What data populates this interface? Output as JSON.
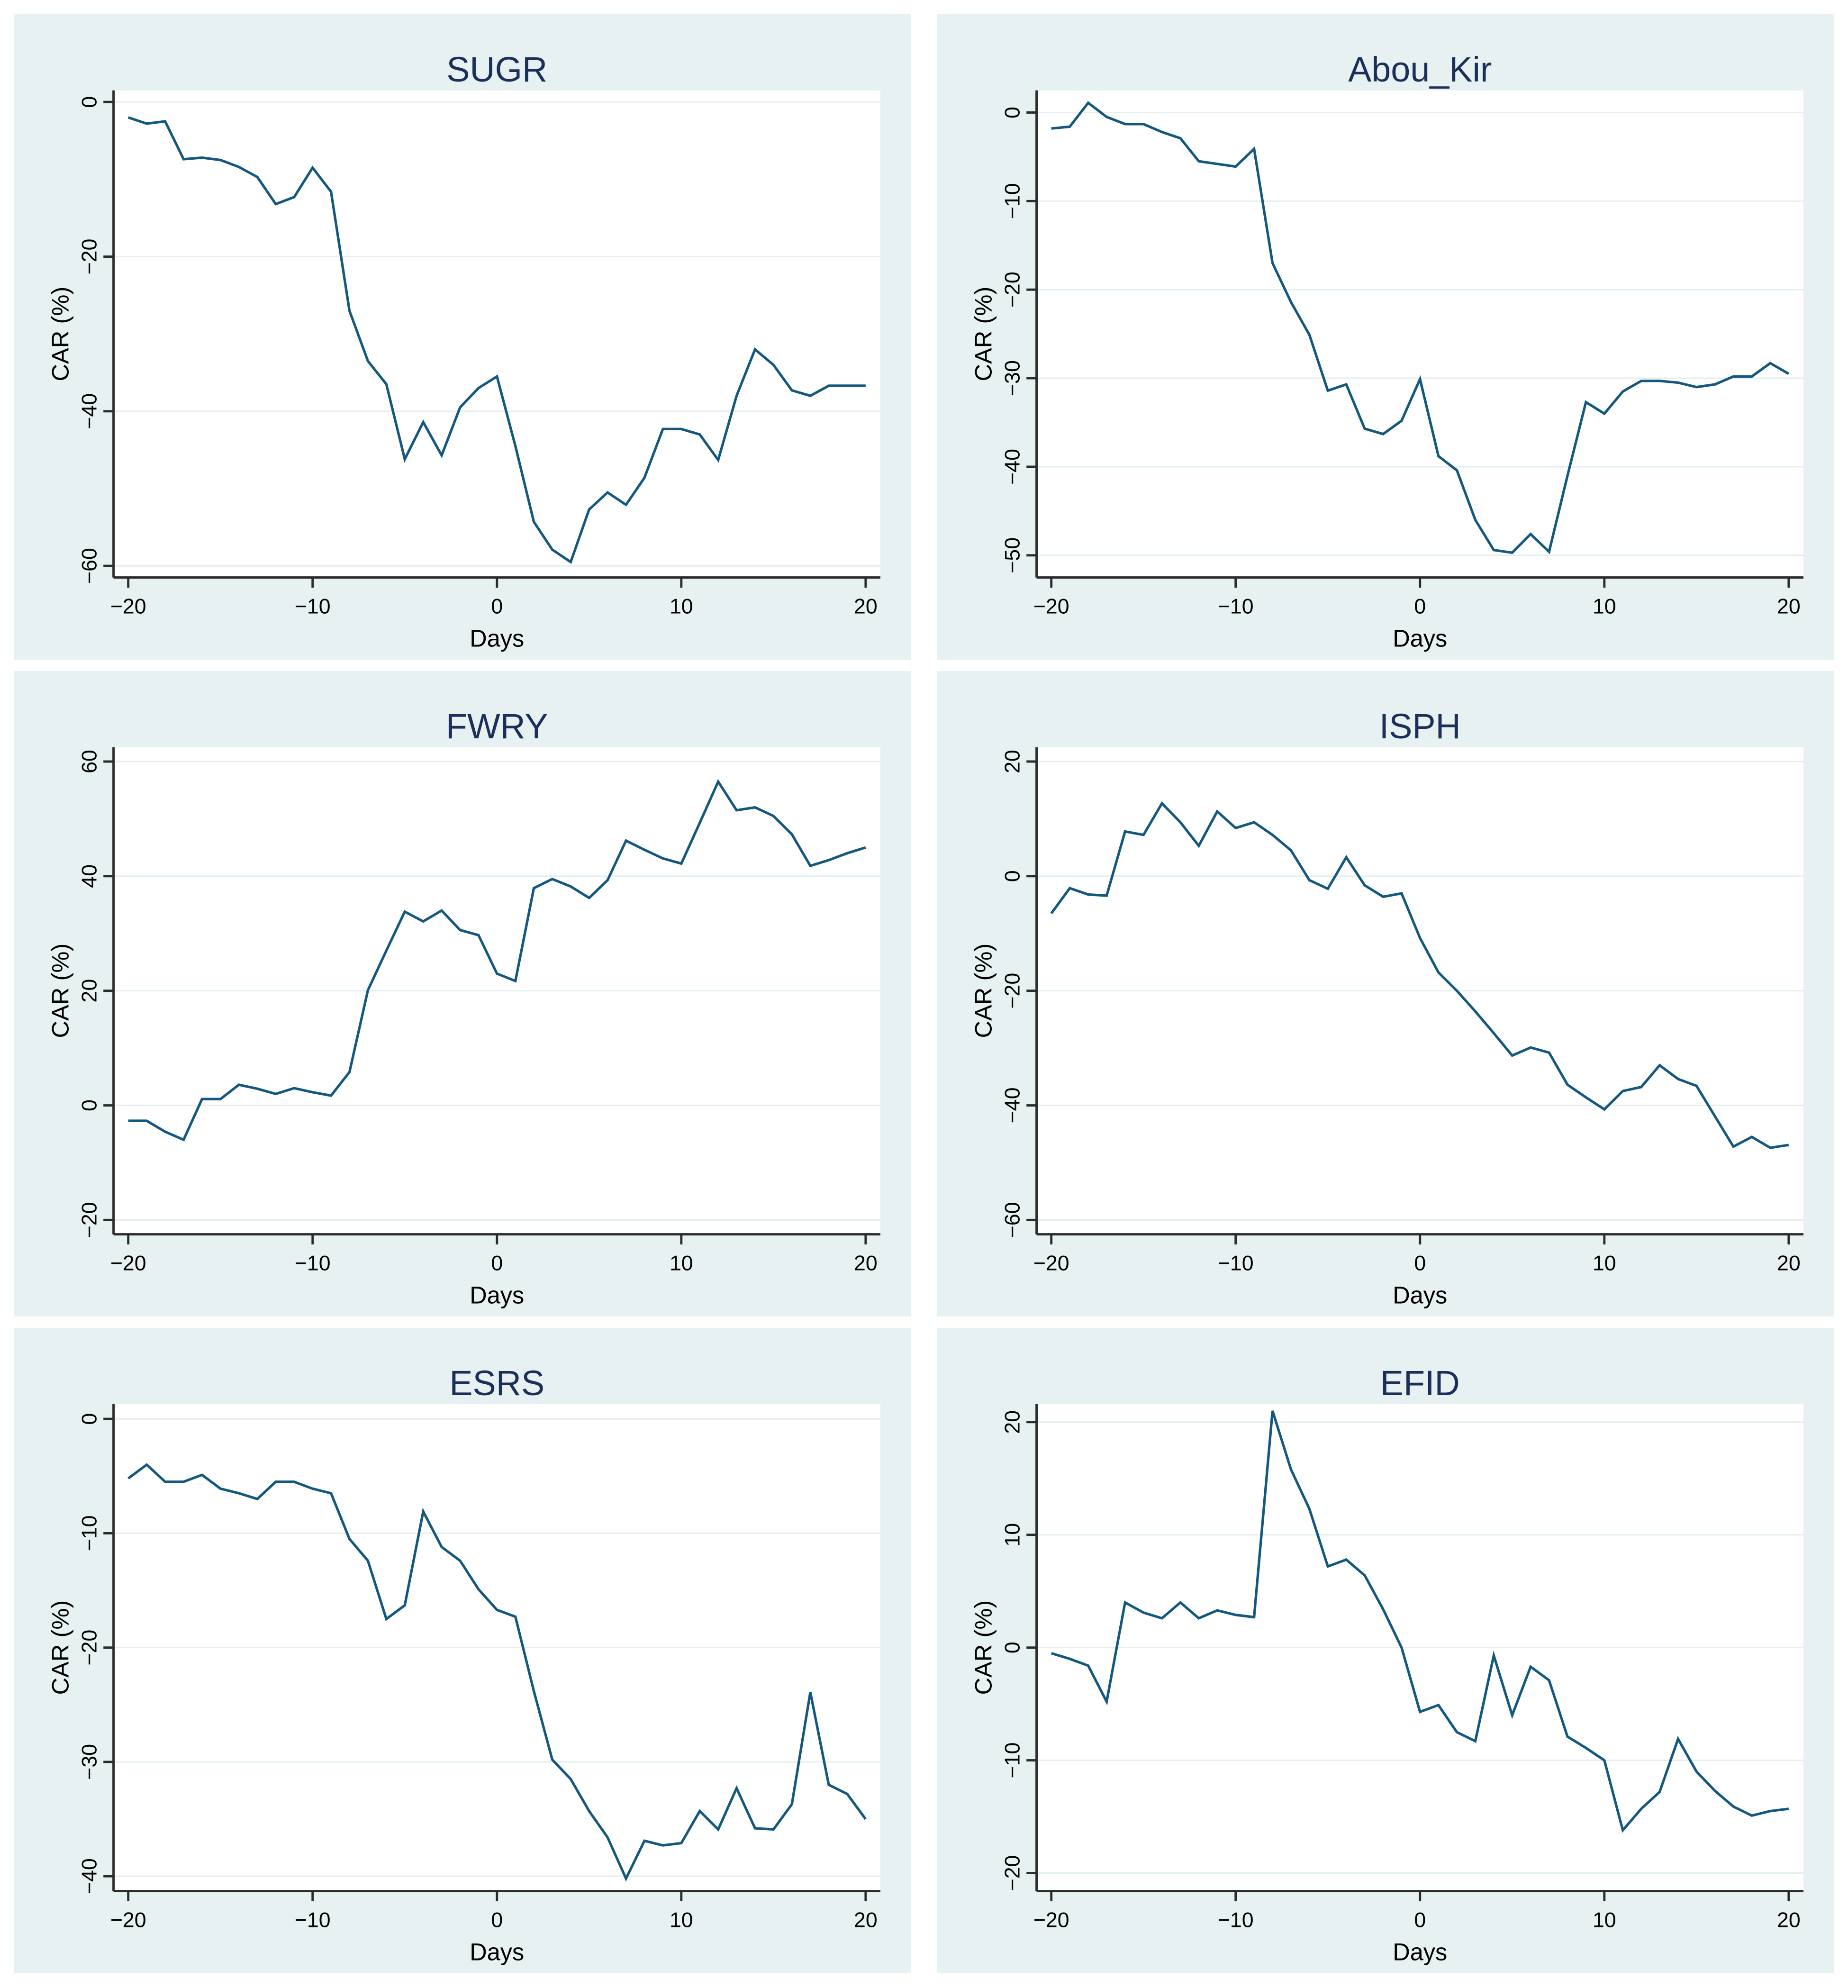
{
  "style": {
    "page_bg": "#ffffff",
    "panel_bg": "#e8f1f2",
    "plot_bg": "#ffffff",
    "grid_color": "#e2eef0",
    "axis_color": "#2b2b2b",
    "tick_text_color": "#000000",
    "title_color": "#1b2f5b",
    "line_color": "#14587f"
  },
  "chart_data": [
    {
      "type": "line",
      "title": "SUGR",
      "xlabel": "Days",
      "ylabel": "CAR (%)",
      "x": [
        -20,
        -19,
        -18,
        -17,
        -16,
        -15,
        -14,
        -13,
        -12,
        -11,
        -10,
        -9,
        -8,
        -7,
        -6,
        -5,
        -4,
        -3,
        -2,
        -1,
        0,
        1,
        2,
        3,
        4,
        5,
        6,
        7,
        8,
        9,
        10,
        11,
        12,
        13,
        14,
        15,
        16,
        17,
        18,
        19,
        20
      ],
      "values": [
        -2.0,
        -2.8,
        -2.5,
        -7.4,
        -7.2,
        -7.5,
        -8.4,
        -9.7,
        -13.2,
        -12.3,
        -8.5,
        -11.6,
        -27.0,
        -33.5,
        -36.5,
        -46.2,
        -41.4,
        -45.7,
        -39.5,
        -37.0,
        -35.5,
        -44.5,
        -54.3,
        -57.9,
        -59.5,
        -52.7,
        -50.5,
        -52.1,
        -48.6,
        -42.3,
        -42.3,
        -43.0,
        -46.3,
        -38.0,
        -32.0,
        -34.0,
        -37.3,
        -38.0,
        -36.7,
        -36.7,
        -36.7
      ],
      "xticks": [
        -20,
        -10,
        0,
        10,
        20
      ],
      "yticks": [
        0,
        -20,
        -40,
        -60
      ],
      "xlim": [
        -20.8,
        20.8
      ],
      "ylim": [
        -61.5,
        1.5
      ],
      "grid": "horizontal",
      "legend": "none"
    },
    {
      "type": "line",
      "title": "Abou_Kir",
      "xlabel": "Days",
      "ylabel": "CAR (%)",
      "x": [
        -20,
        -19,
        -18,
        -17,
        -16,
        -15,
        -14,
        -13,
        -12,
        -11,
        -10,
        -9,
        -8,
        -7,
        -6,
        -5,
        -4,
        -3,
        -2,
        -1,
        0,
        1,
        2,
        3,
        4,
        5,
        6,
        7,
        8,
        9,
        10,
        11,
        12,
        13,
        14,
        15,
        16,
        17,
        18,
        19,
        20
      ],
      "values": [
        -1.8,
        -1.6,
        1.1,
        -0.5,
        -1.3,
        -1.3,
        -2.2,
        -2.9,
        -5.5,
        -5.8,
        -6.1,
        -4.1,
        -17.0,
        -21.4,
        -25.1,
        -31.4,
        -30.7,
        -35.7,
        -36.3,
        -34.8,
        -30.1,
        -38.8,
        -40.4,
        -46.0,
        -49.4,
        -49.7,
        -47.6,
        -49.6,
        -41.0,
        -32.7,
        -34.0,
        -31.5,
        -30.3,
        -30.3,
        -30.5,
        -31.0,
        -30.7,
        -29.8,
        -29.8,
        -28.3,
        -29.5
      ],
      "xticks": [
        -20,
        -10,
        0,
        10,
        20
      ],
      "yticks": [
        0,
        -10,
        -20,
        -30,
        -40,
        -50
      ],
      "xlim": [
        -20.8,
        20.8
      ],
      "ylim": [
        -52.5,
        2.5
      ],
      "grid": "horizontal",
      "legend": "none"
    },
    {
      "type": "line",
      "title": "FWRY",
      "xlabel": "Days",
      "ylabel": "CAR (%)",
      "x": [
        -20,
        -19,
        -18,
        -17,
        -16,
        -15,
        -14,
        -13,
        -12,
        -11,
        -10,
        -9,
        -8,
        -7,
        -6,
        -5,
        -4,
        -3,
        -2,
        -1,
        0,
        1,
        2,
        3,
        4,
        5,
        6,
        7,
        8,
        9,
        10,
        11,
        12,
        13,
        14,
        15,
        16,
        17,
        18,
        19,
        20
      ],
      "values": [
        -2.7,
        -2.7,
        -4.6,
        -6.0,
        1.1,
        1.1,
        3.6,
        2.9,
        2.0,
        3.0,
        2.3,
        1.7,
        5.8,
        20.1,
        27.0,
        33.8,
        32.1,
        34.0,
        30.6,
        29.7,
        23.0,
        21.7,
        37.9,
        39.5,
        38.2,
        36.2,
        39.3,
        46.2,
        44.6,
        43.1,
        42.2,
        49.3,
        56.5,
        51.5,
        52.0,
        50.5,
        47.3,
        41.8,
        42.8,
        44.0,
        45.0
      ],
      "xticks": [
        -20,
        -10,
        0,
        10,
        20
      ],
      "yticks": [
        60,
        40,
        20,
        0,
        -20
      ],
      "xlim": [
        -20.8,
        20.8
      ],
      "ylim": [
        -22.5,
        62.5
      ],
      "grid": "horizontal",
      "legend": "none"
    },
    {
      "type": "line",
      "title": "ISPH",
      "xlabel": "Days",
      "ylabel": "CAR (%)",
      "x": [
        -20,
        -19,
        -18,
        -17,
        -16,
        -15,
        -14,
        -13,
        -12,
        -11,
        -10,
        -9,
        -8,
        -7,
        -6,
        -5,
        -4,
        -3,
        -2,
        -1,
        0,
        1,
        2,
        3,
        4,
        5,
        6,
        7,
        8,
        9,
        10,
        11,
        12,
        13,
        14,
        15,
        16,
        17,
        18,
        19,
        20
      ],
      "values": [
        -6.5,
        -2.1,
        -3.2,
        -3.4,
        7.8,
        7.2,
        12.7,
        9.4,
        5.3,
        11.3,
        8.4,
        9.4,
        7.2,
        4.5,
        -0.7,
        -2.2,
        3.3,
        -1.6,
        -3.6,
        -3.0,
        -10.8,
        -16.8,
        -20.0,
        -23.6,
        -27.4,
        -31.3,
        -29.9,
        -30.8,
        -36.4,
        -38.6,
        -40.7,
        -37.5,
        -36.8,
        -33.0,
        -35.4,
        -36.6,
        -41.9,
        -47.2,
        -45.5,
        -47.4,
        -46.9
      ],
      "xticks": [
        -20,
        -10,
        0,
        10,
        20
      ],
      "yticks": [
        20,
        0,
        -20,
        -40,
        -60
      ],
      "xlim": [
        -20.8,
        20.8
      ],
      "ylim": [
        -62.5,
        22.5
      ],
      "grid": "horizontal",
      "legend": "none"
    },
    {
      "type": "line",
      "title": "ESRS",
      "xlabel": "Days",
      "ylabel": "CAR (%)",
      "x": [
        -20,
        -19,
        -18,
        -17,
        -16,
        -15,
        -14,
        -13,
        -12,
        -11,
        -10,
        -9,
        -8,
        -7,
        -6,
        -5,
        -4,
        -3,
        -2,
        -1,
        0,
        1,
        2,
        3,
        4,
        5,
        6,
        7,
        8,
        9,
        10,
        11,
        12,
        13,
        14,
        15,
        16,
        17,
        18,
        19,
        20
      ],
      "values": [
        -5.2,
        -4.0,
        -5.5,
        -5.5,
        -4.9,
        -6.1,
        -6.5,
        -7.0,
        -5.5,
        -5.5,
        -6.1,
        -6.5,
        -10.5,
        -12.4,
        -17.5,
        -16.3,
        -8.1,
        -11.2,
        -12.4,
        -14.9,
        -16.7,
        -17.3,
        -23.8,
        -29.8,
        -31.5,
        -34.3,
        -36.6,
        -40.2,
        -36.9,
        -37.3,
        -37.1,
        -34.3,
        -35.9,
        -32.3,
        -35.8,
        -35.9,
        -33.7,
        -23.9,
        -32.0,
        -32.8,
        -35.0
      ],
      "xticks": [
        -20,
        -10,
        0,
        10,
        20
      ],
      "yticks": [
        0,
        -10,
        -20,
        -30,
        -40
      ],
      "xlim": [
        -20.8,
        20.8
      ],
      "ylim": [
        -41.3,
        1.3
      ],
      "grid": "horizontal",
      "legend": "none"
    },
    {
      "type": "line",
      "title": "EFID",
      "xlabel": "Days",
      "ylabel": "CAR (%)",
      "x": [
        -20,
        -19,
        -18,
        -17,
        -16,
        -15,
        -14,
        -13,
        -12,
        -11,
        -10,
        -9,
        -8,
        -7,
        -6,
        -5,
        -4,
        -3,
        -2,
        -1,
        0,
        1,
        2,
        3,
        4,
        5,
        6,
        7,
        8,
        9,
        10,
        11,
        12,
        13,
        14,
        15,
        16,
        17,
        18,
        19,
        20
      ],
      "values": [
        -0.5,
        -1.0,
        -1.6,
        -4.8,
        4.0,
        3.1,
        2.6,
        4.0,
        2.6,
        3.3,
        2.9,
        2.7,
        21.0,
        15.8,
        12.3,
        7.2,
        7.8,
        6.4,
        3.4,
        0.0,
        -5.7,
        -5.1,
        -7.5,
        -8.3,
        -0.7,
        -6.0,
        -1.7,
        -2.9,
        -7.9,
        -8.9,
        -10.0,
        -16.2,
        -14.3,
        -12.8,
        -8.1,
        -11.0,
        -12.7,
        -14.1,
        -14.9,
        -14.5,
        -14.3
      ],
      "xticks": [
        -20,
        -10,
        0,
        10,
        20
      ],
      "yticks": [
        20,
        10,
        0,
        -10,
        -20
      ],
      "xlim": [
        -20.8,
        20.8
      ],
      "ylim": [
        -21.6,
        21.6
      ],
      "grid": "horizontal",
      "legend": "none"
    }
  ]
}
